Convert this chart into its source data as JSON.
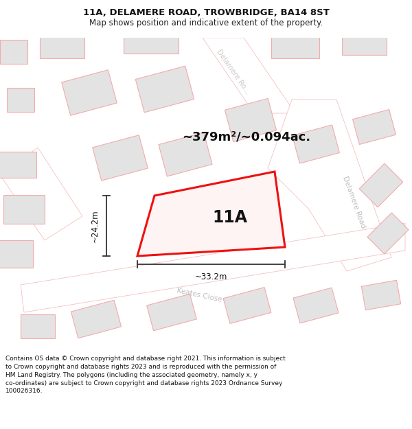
{
  "title_line1": "11A, DELAMERE ROAD, TROWBRIDGE, BA14 8ST",
  "title_line2": "Map shows position and indicative extent of the property.",
  "area_text": "~379m²/~0.094ac.",
  "label_11A": "11A",
  "dim_height": "~24.2m",
  "dim_width": "~33.2m",
  "footer_text": "Contains OS data © Crown copyright and database right 2021. This information is subject to Crown copyright and database rights 2023 and is reproduced with the permission of HM Land Registry. The polygons (including the associated geometry, namely x, y co-ordinates) are subject to Crown copyright and database rights 2023 Ordnance Survey 100026316.",
  "bg_color": "#ffffff",
  "building_fill": "#e3e3e3",
  "building_edge": "#f5aaaa",
  "property_color": "#ee1111",
  "property_fill": "#fff4f4",
  "dim_line_color": "#333333",
  "road_label_color": "#c8c8c8",
  "road_line_color": "#f5c0c0",
  "road_fill": "#ffffff"
}
